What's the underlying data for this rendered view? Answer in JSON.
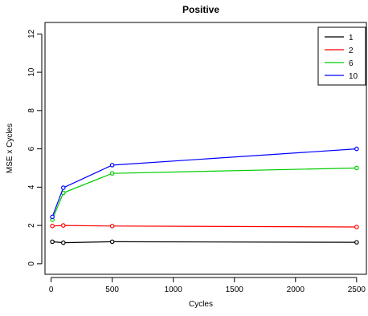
{
  "chart_data": {
    "type": "line",
    "title": "Positive",
    "xlabel": "Cycles",
    "ylabel": "MSE x Cycles",
    "xlim": [
      -50,
      2580
    ],
    "ylim": [
      -0.55,
      12.6
    ],
    "x_ticks": [
      0,
      500,
      1000,
      1500,
      2000,
      2500
    ],
    "y_ticks": [
      0,
      2,
      4,
      6,
      8,
      10,
      12
    ],
    "grid": false,
    "legend_position": "top-right",
    "x": [
      10,
      100,
      500,
      2500
    ],
    "series": [
      {
        "name": "1",
        "color": "#000000",
        "values": [
          1.15,
          1.1,
          1.15,
          1.12
        ]
      },
      {
        "name": "2",
        "color": "#ff0000",
        "values": [
          1.97,
          2.0,
          1.97,
          1.92
        ]
      },
      {
        "name": "6",
        "color": "#00cd00",
        "values": [
          2.3,
          3.7,
          4.72,
          5.0
        ]
      },
      {
        "name": "10",
        "color": "#0000ff",
        "values": [
          2.45,
          3.97,
          5.15,
          6.0
        ]
      }
    ]
  }
}
